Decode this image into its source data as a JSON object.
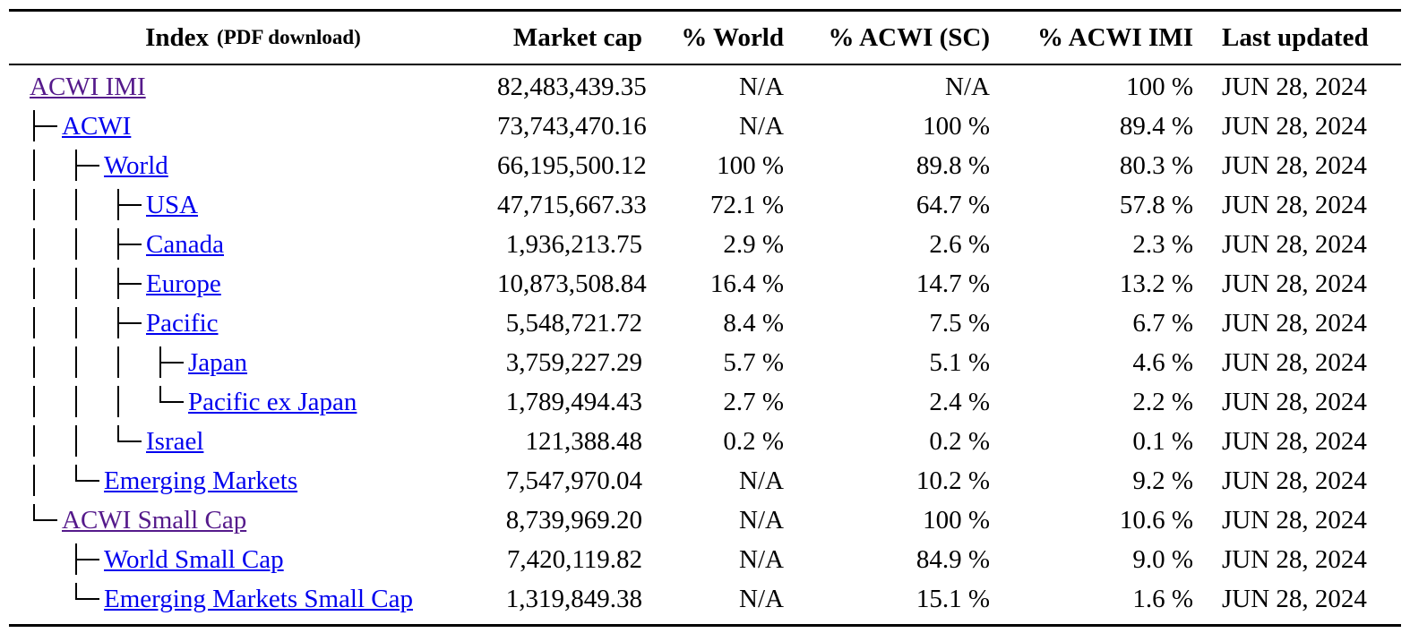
{
  "colors": {
    "link_unvisited": "#0000EE",
    "link_visited": "#551A8B",
    "text": "#000000"
  },
  "table": {
    "columns": [
      {
        "label": "Index",
        "sublabel": "(PDF download)"
      },
      {
        "label": "Market cap"
      },
      {
        "label": "% World"
      },
      {
        "label": "% ACWI (SC)"
      },
      {
        "label": "% ACWI IMI"
      },
      {
        "label": "Last updated"
      }
    ],
    "rows": [
      {
        "name": "ACWI IMI",
        "tree": "",
        "visited": true,
        "market_cap": "82,483,439.35",
        "pct_world": "N/A",
        "pct_acwi_sc": "N/A",
        "pct_acwi_imi": "100 %",
        "last_updated": "JUN 28, 2024"
      },
      {
        "name": "ACWI",
        "tree": "├",
        "visited": false,
        "market_cap": "73,743,470.16",
        "pct_world": "N/A",
        "pct_acwi_sc": "100 %",
        "pct_acwi_imi": "89.4 %",
        "last_updated": "JUN 28, 2024"
      },
      {
        "name": "World",
        "tree": "│├",
        "visited": false,
        "market_cap": "66,195,500.12",
        "pct_world": "100 %",
        "pct_acwi_sc": "89.8 %",
        "pct_acwi_imi": "80.3 %",
        "last_updated": "JUN 28, 2024"
      },
      {
        "name": "USA",
        "tree": "││├",
        "visited": false,
        "market_cap": "47,715,667.33",
        "pct_world": "72.1 %",
        "pct_acwi_sc": "64.7 %",
        "pct_acwi_imi": "57.8 %",
        "last_updated": "JUN 28, 2024"
      },
      {
        "name": "Canada",
        "tree": "││├",
        "visited": false,
        "market_cap": "1,936,213.75",
        "pct_world": "2.9 %",
        "pct_acwi_sc": "2.6 %",
        "pct_acwi_imi": "2.3 %",
        "last_updated": "JUN 28, 2024"
      },
      {
        "name": "Europe",
        "tree": "││├",
        "visited": false,
        "market_cap": "10,873,508.84",
        "pct_world": "16.4 %",
        "pct_acwi_sc": "14.7 %",
        "pct_acwi_imi": "13.2 %",
        "last_updated": "JUN 28, 2024"
      },
      {
        "name": "Pacific",
        "tree": "││├",
        "visited": false,
        "market_cap": "5,548,721.72",
        "pct_world": "8.4 %",
        "pct_acwi_sc": "7.5 %",
        "pct_acwi_imi": "6.7 %",
        "last_updated": "JUN 28, 2024"
      },
      {
        "name": "Japan",
        "tree": "│││├",
        "visited": false,
        "market_cap": "3,759,227.29",
        "pct_world": "5.7 %",
        "pct_acwi_sc": "5.1 %",
        "pct_acwi_imi": "4.6 %",
        "last_updated": "JUN 28, 2024"
      },
      {
        "name": "Pacific ex Japan",
        "tree": "│││└",
        "visited": false,
        "market_cap": "1,789,494.43",
        "pct_world": "2.7 %",
        "pct_acwi_sc": "2.4 %",
        "pct_acwi_imi": "2.2 %",
        "last_updated": "JUN 28, 2024"
      },
      {
        "name": "Israel",
        "tree": "││└",
        "visited": false,
        "market_cap": "121,388.48",
        "pct_world": "0.2 %",
        "pct_acwi_sc": "0.2 %",
        "pct_acwi_imi": "0.1 %",
        "last_updated": "JUN 28, 2024"
      },
      {
        "name": "Emerging Markets",
        "tree": "│└",
        "visited": false,
        "market_cap": "7,547,970.04",
        "pct_world": "N/A",
        "pct_acwi_sc": "10.2 %",
        "pct_acwi_imi": "9.2 %",
        "last_updated": "JUN 28, 2024"
      },
      {
        "name": "ACWI Small Cap",
        "tree": "└",
        "visited": true,
        "market_cap": "8,739,969.20",
        "pct_world": "N/A",
        "pct_acwi_sc": "100 %",
        "pct_acwi_imi": "10.6 %",
        "last_updated": "JUN 28, 2024"
      },
      {
        "name": "World Small Cap",
        "tree": " ├",
        "visited": false,
        "market_cap": "7,420,119.82",
        "pct_world": "N/A",
        "pct_acwi_sc": "84.9 %",
        "pct_acwi_imi": "9.0 %",
        "last_updated": "JUN 28, 2024"
      },
      {
        "name": "Emerging Markets Small Cap",
        "tree": " └",
        "visited": false,
        "market_cap": "1,319,849.38",
        "pct_world": "N/A",
        "pct_acwi_sc": "15.1 %",
        "pct_acwi_imi": "1.6 %",
        "last_updated": "JUN 28, 2024"
      }
    ]
  }
}
